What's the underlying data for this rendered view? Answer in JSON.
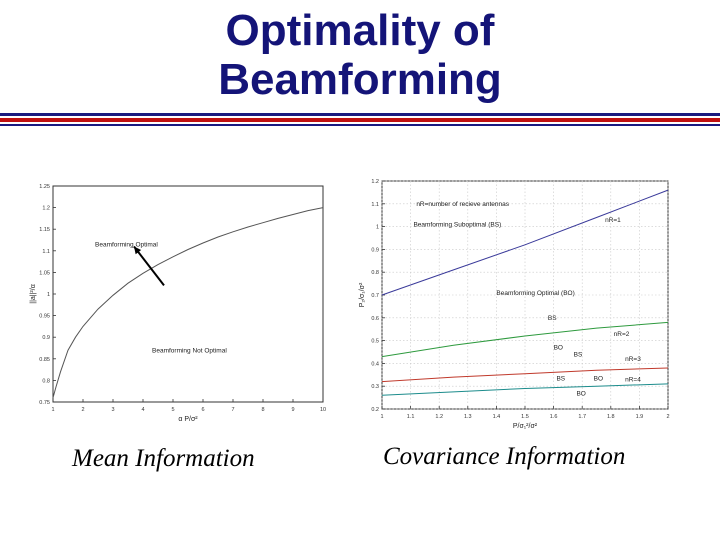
{
  "slide": {
    "title_line1": "Optimality of",
    "title_line2": "Beamforming",
    "caption_left": "Mean Information",
    "caption_right": "Covariance Information",
    "title_color": "#141478",
    "rule_colors": [
      "#1a1a80",
      "#c01010",
      "#1a1a80"
    ]
  },
  "chart_data": [
    {
      "type": "line",
      "xlabel": "α P/σ²",
      "ylabel": "||a||²/α",
      "xlim": [
        1,
        10
      ],
      "ylim": [
        0.75,
        1.25
      ],
      "x_ticks": [
        "1",
        "2",
        "3",
        "4",
        "5",
        "6",
        "7",
        "8",
        "9",
        "10"
      ],
      "y_ticks": [
        "0.75",
        "0.8",
        "0.85",
        "0.9",
        "0.95",
        "1",
        "1.05",
        "1.1",
        "1.15",
        "1.2",
        "1.25"
      ],
      "grid": false,
      "series": [
        {
          "color": "#555555",
          "x": [
            1.0,
            1.1,
            1.25,
            1.5,
            1.75,
            2.0,
            2.5,
            3.0,
            3.5,
            4.0,
            4.5,
            5.0,
            5.5,
            6.0,
            6.5,
            7.0,
            7.5,
            8.0,
            8.5,
            9.0,
            9.5,
            10.0
          ],
          "y": [
            0.76,
            0.785,
            0.82,
            0.87,
            0.9,
            0.925,
            0.965,
            0.997,
            1.025,
            1.048,
            1.068,
            1.086,
            1.103,
            1.118,
            1.132,
            1.144,
            1.155,
            1.165,
            1.175,
            1.184,
            1.193,
            1.2
          ]
        }
      ],
      "annotations": [
        {
          "text": "Beamforming Optimal",
          "x": 2.4,
          "y": 1.11
        },
        {
          "text": "Beamforming Not Optimal",
          "x": 4.3,
          "y": 0.865
        }
      ],
      "arrow": {
        "from": [
          4.7,
          1.02
        ],
        "to": [
          3.7,
          1.11
        ]
      }
    },
    {
      "type": "line",
      "xlabel": "P/σ₁²/σ²",
      "ylabel": "P₂/σ₁/σ²",
      "xlim": [
        1,
        2
      ],
      "ylim": [
        0.2,
        1.2
      ],
      "x_ticks": [
        "1",
        "1.1",
        "1.2",
        "1.3",
        "1.4",
        "1.5",
        "1.6",
        "1.7",
        "1.8",
        "1.9",
        "2"
      ],
      "y_ticks": [
        "0.2",
        "0.3",
        "0.4",
        "0.5",
        "0.6",
        "0.7",
        "0.8",
        "0.9",
        "1",
        "1.1",
        "1.2"
      ],
      "grid": true,
      "series": [
        {
          "name": "nR=1",
          "color": "#3a3a9a",
          "x": [
            1.0,
            1.25,
            1.5,
            1.75,
            2.0
          ],
          "y": [
            0.7,
            0.81,
            0.92,
            1.04,
            1.16
          ]
        },
        {
          "name": "nR=2",
          "color": "#2e9a3e",
          "x": [
            1.0,
            1.25,
            1.5,
            1.75,
            2.0
          ],
          "y": [
            0.43,
            0.48,
            0.52,
            0.555,
            0.58
          ]
        },
        {
          "name": "nR=3",
          "color": "#c0392b",
          "x": [
            1.0,
            1.25,
            1.5,
            1.75,
            2.0
          ],
          "y": [
            0.32,
            0.34,
            0.355,
            0.37,
            0.38
          ]
        },
        {
          "name": "nR=4",
          "color": "#1c8c8c",
          "x": [
            1.0,
            1.25,
            1.5,
            1.75,
            2.0
          ],
          "y": [
            0.26,
            0.275,
            0.29,
            0.3,
            0.31
          ]
        }
      ],
      "annotations": [
        {
          "text": "nR=number of recieve antennas",
          "x": 1.12,
          "y": 1.09
        },
        {
          "text": "Beamforming Suboptimal (BS)",
          "x": 1.11,
          "y": 1.0
        },
        {
          "text": "nR=1",
          "x": 1.78,
          "y": 1.02
        },
        {
          "text": "Beamforming Optimal (BO)",
          "x": 1.4,
          "y": 0.7
        },
        {
          "text": "BS",
          "x": 1.58,
          "y": 0.59
        },
        {
          "text": "nR=2",
          "x": 1.81,
          "y": 0.52
        },
        {
          "text": "BO",
          "x": 1.6,
          "y": 0.46
        },
        {
          "text": "BS",
          "x": 1.67,
          "y": 0.43
        },
        {
          "text": "nR=3",
          "x": 1.85,
          "y": 0.41
        },
        {
          "text": "BS",
          "x": 1.61,
          "y": 0.325
        },
        {
          "text": "BO",
          "x": 1.74,
          "y": 0.325
        },
        {
          "text": "nR=4",
          "x": 1.85,
          "y": 0.32
        },
        {
          "text": "BO",
          "x": 1.68,
          "y": 0.26
        }
      ]
    }
  ]
}
